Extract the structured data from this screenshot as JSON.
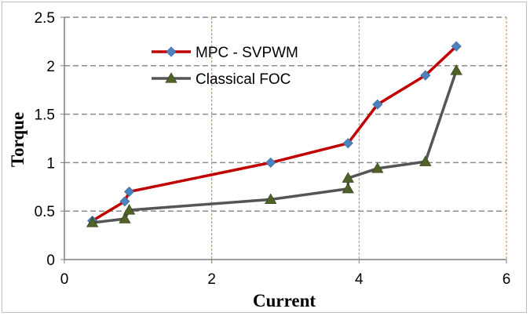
{
  "chart_data": {
    "type": "line",
    "title": "",
    "xlabel": "Current",
    "ylabel": "Torque",
    "xlim": [
      0,
      6
    ],
    "ylim": [
      0,
      2.5
    ],
    "x_ticks": [
      "0",
      "2",
      "4",
      "6"
    ],
    "y_ticks": [
      "0",
      "0.5",
      "1",
      "1.5",
      "2",
      "2.5"
    ],
    "grid": {
      "horizontal": "dashed-gray",
      "vertical": "dashed-orange"
    },
    "legend_position": "top-center",
    "series": [
      {
        "name": "MPC - SVPWM",
        "color": "#c00000",
        "marker": "diamond",
        "marker_color": "#4f81bd",
        "x": [
          0.38,
          0.82,
          0.88,
          2.8,
          3.85,
          4.25,
          4.9,
          5.32
        ],
        "y": [
          0.4,
          0.6,
          0.7,
          1.0,
          1.2,
          1.6,
          1.9,
          2.2
        ]
      },
      {
        "name": "Classical FOC",
        "color": "#555555",
        "marker": "triangle",
        "marker_color": "#4f6228",
        "x": [
          0.38,
          0.82,
          0.88,
          2.8,
          3.85,
          3.85,
          4.25,
          4.9,
          5.32
        ],
        "y": [
          0.38,
          0.42,
          0.51,
          0.62,
          0.73,
          0.84,
          0.94,
          1.01,
          1.95
        ]
      }
    ]
  }
}
